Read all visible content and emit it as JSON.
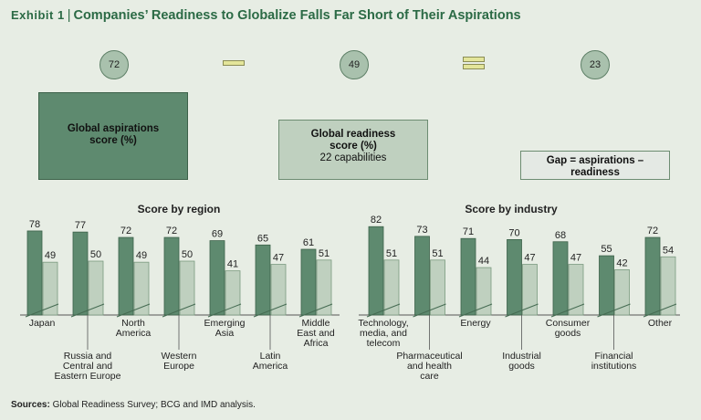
{
  "title": {
    "exhibit": "Exhibit 1",
    "text": "Companies’ Readiness to Globalize Falls Far Short of Their Aspirations"
  },
  "summary": {
    "aspirations": "72",
    "readiness": "49",
    "gap": "23",
    "box1_label": "Global aspirations score (%)",
    "box2_label": "Global readiness score (%)",
    "box2_sub": "22 capabilities",
    "box3_label": "Gap = aspirations – readiness"
  },
  "chart_data": [
    {
      "type": "bar",
      "title": "Score by region",
      "categories": [
        "Japan",
        "Russia and Central and Eastern Europe",
        "North America",
        "Western Europe",
        "Emerging Asia",
        "Latin America",
        "Middle East and Africa"
      ],
      "category_lines": [
        [
          "Japan"
        ],
        [
          "Russia and",
          "Central and",
          "Eastern Europe"
        ],
        [
          "North",
          "America"
        ],
        [
          "Western",
          "Europe"
        ],
        [
          "Emerging",
          "Asia"
        ],
        [
          "Latin",
          "America"
        ],
        [
          "Middle",
          "East and",
          "Africa"
        ]
      ],
      "series": [
        {
          "values": [
            78,
            77,
            72,
            72,
            69,
            65,
            61
          ],
          "color": "#5e8a6f"
        },
        {
          "values": [
            49,
            50,
            49,
            50,
            41,
            47,
            51
          ],
          "color": "#bfd0bf"
        }
      ]
    },
    {
      "type": "bar",
      "title": "Score by industry",
      "categories": [
        "Technology, media, and telecom",
        "Pharmaceutical and health care",
        "Energy",
        "Industrial goods",
        "Consumer goods",
        "Financial institutions",
        "Other"
      ],
      "category_lines": [
        [
          "Technology,",
          "media, and",
          "telecom"
        ],
        [
          "Pharmaceutical",
          "and health",
          "care"
        ],
        [
          "Energy"
        ],
        [
          "Industrial",
          "goods"
        ],
        [
          "Consumer",
          "goods"
        ],
        [
          "Financial",
          "institutions"
        ],
        [
          "Other"
        ]
      ],
      "series": [
        {
          "values": [
            82,
            73,
            71,
            70,
            68,
            55,
            72
          ],
          "color": "#5e8a6f"
        },
        {
          "values": [
            51,
            51,
            44,
            47,
            47,
            42,
            54
          ],
          "color": "#bfd0bf"
        }
      ]
    }
  ],
  "sources": {
    "label": "Sources:",
    "text": "Global Readiness Survey; BCG and IMD analysis."
  }
}
